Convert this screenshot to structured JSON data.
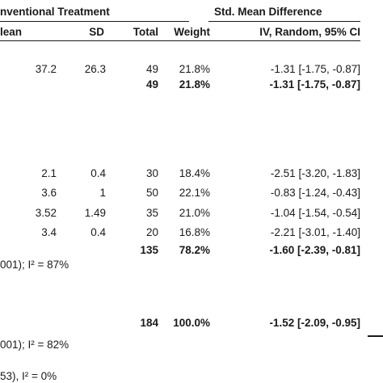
{
  "chart_data": {
    "type": "table",
    "header": {
      "group_label": "nventional Treatment",
      "smd_label": "Std. Mean Difference",
      "col_mean": "lean",
      "col_sd": "SD",
      "col_total": "Total",
      "col_weight": "Weight",
      "col_ci": "IV, Random, 95% CI"
    },
    "rows": [
      {
        "kind": "study",
        "mean": "37.2",
        "sd": "26.3",
        "total": "49",
        "weight": "21.8%",
        "ci": "-1.31 [-1.75, -0.87]"
      },
      {
        "kind": "subtotal",
        "mean": "",
        "sd": "",
        "total": "49",
        "weight": "21.8%",
        "ci": "-1.31 [-1.75, -0.87]"
      },
      {
        "kind": "study",
        "mean": "2.1",
        "sd": "0.4",
        "total": "30",
        "weight": "18.4%",
        "ci": "-2.51 [-3.20, -1.83]"
      },
      {
        "kind": "study",
        "mean": "3.6",
        "sd": "1",
        "total": "50",
        "weight": "22.1%",
        "ci": "-0.83 [-1.24, -0.43]"
      },
      {
        "kind": "study",
        "mean": "3.52",
        "sd": "1.49",
        "total": "35",
        "weight": "21.0%",
        "ci": "-1.04 [-1.54, -0.54]"
      },
      {
        "kind": "study",
        "mean": "3.4",
        "sd": "0.4",
        "total": "20",
        "weight": "16.8%",
        "ci": "-2.21 [-3.01, -1.40]"
      },
      {
        "kind": "subtotal",
        "mean": "",
        "sd": "",
        "total": "135",
        "weight": "78.2%",
        "ci": "-1.60 [-2.39, -0.81]"
      },
      {
        "kind": "total",
        "mean": "",
        "sd": "",
        "total": "184",
        "weight": "100.0%",
        "ci": "-1.52 [-2.09, -0.95]"
      }
    ],
    "notes": {
      "heterogeneity_subgroup": "001); I² = 87%",
      "heterogeneity_total": "001); I² = 82%",
      "subgroup_diff": "53), I² = 0%"
    }
  }
}
